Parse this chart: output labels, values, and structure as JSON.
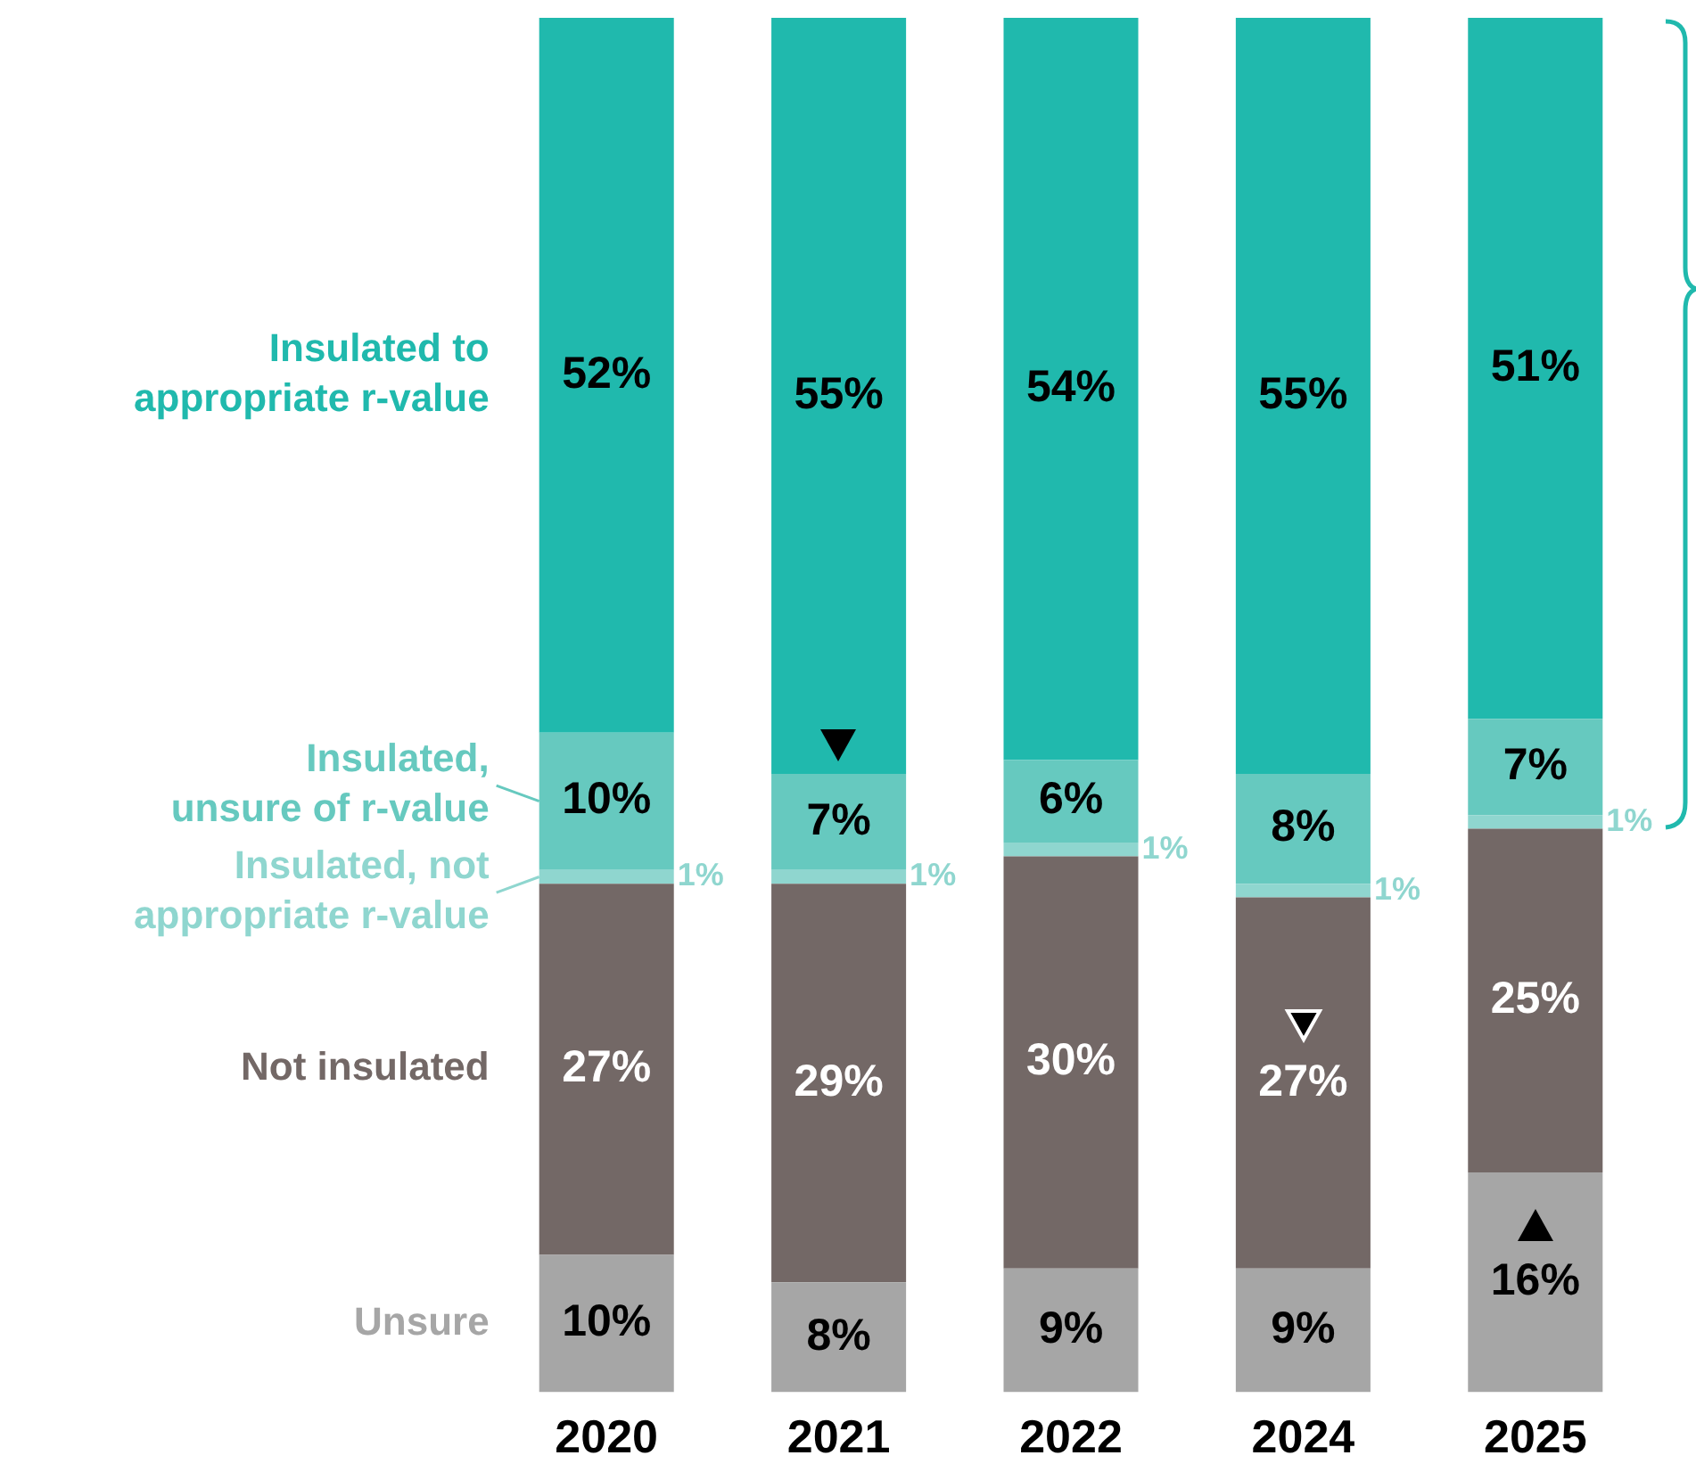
{
  "chart_data": {
    "type": "bar",
    "stacked": true,
    "legend": "left",
    "categories": [
      "2020",
      "2021",
      "2022",
      "2024",
      "2025"
    ],
    "series": [
      {
        "name": "Unsure",
        "color": "#a6a6a6",
        "values": [
          10,
          8,
          9,
          9,
          16
        ],
        "value_labels": [
          "10%",
          "8%",
          "9%",
          "9%",
          "16%"
        ]
      },
      {
        "name": "Not insulated",
        "color": "#736866",
        "values": [
          27,
          29,
          30,
          27,
          25
        ],
        "value_labels": [
          "27%",
          "29%",
          "30%",
          "27%",
          "25%"
        ]
      },
      {
        "name": "Insulated, not appropriate r-value",
        "color": "#8fd6cf",
        "values": [
          1,
          1,
          1,
          1,
          1
        ],
        "value_labels": [
          "1%",
          "1%",
          "1%",
          "1%",
          "1%"
        ]
      },
      {
        "name": "Insulated, unsure of r-value",
        "color": "#66c9bf",
        "values": [
          10,
          7,
          6,
          8,
          7
        ],
        "value_labels": [
          "10%",
          "7%",
          "6%",
          "8%",
          "7%"
        ]
      },
      {
        "name": "Insulated to appropriate r-value",
        "color": "#20b9ad",
        "values": [
          52,
          55,
          54,
          55,
          51
        ],
        "value_labels": [
          "52%",
          "55%",
          "54%",
          "55%",
          "51%"
        ]
      }
    ]
  }
}
